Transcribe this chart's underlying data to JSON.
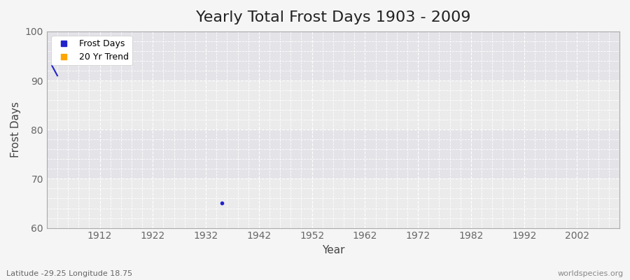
{
  "title": "Yearly Total Frost Days 1903 - 2009",
  "xlabel": "Year",
  "ylabel": "Frost Days",
  "xlim": [
    1902,
    2010
  ],
  "ylim": [
    60,
    100
  ],
  "yticks": [
    60,
    70,
    80,
    90,
    100
  ],
  "xticks": [
    1912,
    1922,
    1932,
    1942,
    1952,
    1962,
    1972,
    1982,
    1992,
    2002
  ],
  "background_color": "#f5f5f5",
  "plot_bg_color": "#ebebeb",
  "frost_days_color": "#2222cc",
  "trend_color": "#ffa500",
  "frost_data_x": [
    1903,
    1904
  ],
  "frost_data_y": [
    93,
    91
  ],
  "isolated_x": [
    1935
  ],
  "isolated_y": [
    65
  ],
  "grid_color": "#ffffff",
  "subtitle": "Latitude -29.25 Longitude 18.75",
  "watermark": "worldspecies.org",
  "title_fontsize": 16,
  "label_fontsize": 11,
  "tick_fontsize": 10,
  "band_colors": [
    "#e8e8e8",
    "#e0e0e0"
  ],
  "band_yticks": [
    60,
    70,
    80,
    90,
    100
  ]
}
